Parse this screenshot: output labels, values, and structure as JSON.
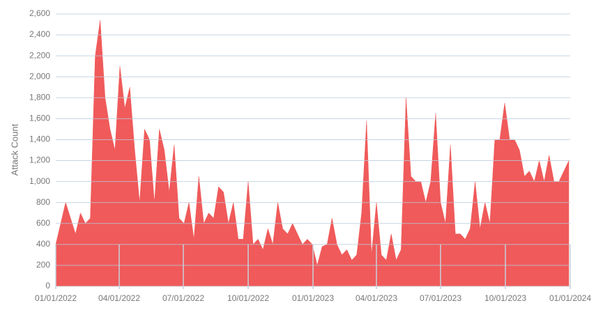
{
  "chart_data": {
    "type": "area",
    "y_label": "Attack Count",
    "x": [
      "2022-01-01",
      "2022-01-08",
      "2022-01-15",
      "2022-01-22",
      "2022-01-29",
      "2022-02-05",
      "2022-02-12",
      "2022-02-19",
      "2022-02-26",
      "2022-03-05",
      "2022-03-12",
      "2022-03-19",
      "2022-03-26",
      "2022-04-02",
      "2022-04-09",
      "2022-04-16",
      "2022-04-23",
      "2022-04-30",
      "2022-05-07",
      "2022-05-14",
      "2022-05-21",
      "2022-05-28",
      "2022-06-04",
      "2022-06-11",
      "2022-06-18",
      "2022-06-25",
      "2022-07-02",
      "2022-07-09",
      "2022-07-16",
      "2022-07-23",
      "2022-07-30",
      "2022-08-06",
      "2022-08-13",
      "2022-08-20",
      "2022-08-27",
      "2022-09-03",
      "2022-09-10",
      "2022-09-17",
      "2022-09-24",
      "2022-10-01",
      "2022-10-08",
      "2022-10-15",
      "2022-10-22",
      "2022-10-29",
      "2022-11-05",
      "2022-11-12",
      "2022-11-19",
      "2022-11-26",
      "2022-12-03",
      "2022-12-10",
      "2022-12-17",
      "2022-12-24",
      "2022-12-31",
      "2023-01-07",
      "2023-01-14",
      "2023-01-21",
      "2023-01-28",
      "2023-02-04",
      "2023-02-11",
      "2023-02-18",
      "2023-02-25",
      "2023-03-04",
      "2023-03-11",
      "2023-03-18",
      "2023-03-25",
      "2023-04-01",
      "2023-04-08",
      "2023-04-15",
      "2023-04-22",
      "2023-04-29",
      "2023-05-06",
      "2023-05-13",
      "2023-05-20",
      "2023-05-27",
      "2023-06-03",
      "2023-06-10",
      "2023-06-17",
      "2023-06-24",
      "2023-07-01",
      "2023-07-08",
      "2023-07-15",
      "2023-07-22",
      "2023-07-29",
      "2023-08-05",
      "2023-08-12",
      "2023-08-19",
      "2023-08-26",
      "2023-09-02",
      "2023-09-09",
      "2023-09-16",
      "2023-09-23",
      "2023-09-30",
      "2023-10-07",
      "2023-10-14",
      "2023-10-21",
      "2023-10-28",
      "2023-11-04",
      "2023-11-11",
      "2023-11-18",
      "2023-11-25",
      "2023-12-02",
      "2023-12-09",
      "2023-12-16",
      "2023-12-23",
      "2023-12-30"
    ],
    "series": [
      {
        "name": "Attack Count",
        "color": "#f05a5a",
        "values": [
          400,
          600,
          800,
          650,
          500,
          700,
          600,
          650,
          2200,
          2540,
          1800,
          1500,
          1300,
          2100,
          1700,
          1900,
          1300,
          800,
          1500,
          1400,
          800,
          1500,
          1300,
          900,
          1350,
          650,
          600,
          800,
          450,
          1050,
          600,
          700,
          650,
          950,
          900,
          600,
          800,
          450,
          450,
          1000,
          400,
          450,
          350,
          550,
          400,
          800,
          550,
          500,
          600,
          500,
          400,
          450,
          400,
          200,
          380,
          400,
          650,
          400,
          300,
          350,
          250,
          300,
          700,
          1580,
          300,
          800,
          300,
          250,
          500,
          250,
          350,
          1800,
          1050,
          1000,
          1000,
          800,
          1000,
          1650,
          800,
          600,
          1350,
          500,
          500,
          450,
          550,
          1000,
          550,
          800,
          600,
          1400,
          1400,
          1750,
          1400,
          1400,
          1300,
          1050,
          1100,
          1000,
          1200,
          1000,
          1250,
          1000,
          1000,
          1100,
          1200
        ]
      }
    ],
    "xlim": [
      "2022-01-01",
      "2024-01-01"
    ],
    "xticks": [
      {
        "value": "2022-01-01",
        "label": "01/01/2022"
      },
      {
        "value": "2022-04-01",
        "label": "04/01/2022"
      },
      {
        "value": "2022-07-01",
        "label": "07/01/2022"
      },
      {
        "value": "2022-10-01",
        "label": "10/01/2022"
      },
      {
        "value": "2023-01-01",
        "label": "01/01/2023"
      },
      {
        "value": "2023-04-01",
        "label": "04/01/2023"
      },
      {
        "value": "2023-07-01",
        "label": "07/01/2023"
      },
      {
        "value": "2023-10-01",
        "label": "10/01/2023"
      },
      {
        "value": "2024-01-01",
        "label": "01/01/2024"
      }
    ],
    "ylim": [
      0,
      2600
    ],
    "yticks": [
      0,
      200,
      400,
      600,
      800,
      {
        "value": 1000,
        "label": "1,000"
      },
      {
        "value": 1200,
        "label": "1,200"
      },
      {
        "value": 1400,
        "label": "1,400"
      },
      {
        "value": 1600,
        "label": "1,600"
      },
      {
        "value": 1800,
        "label": "1,800"
      },
      {
        "value": 2000,
        "label": "2,000"
      },
      {
        "value": 2200,
        "label": "2,200"
      },
      {
        "value": 2400,
        "label": "2,400"
      },
      {
        "value": 2600,
        "label": "2,600"
      }
    ],
    "grid": true
  }
}
